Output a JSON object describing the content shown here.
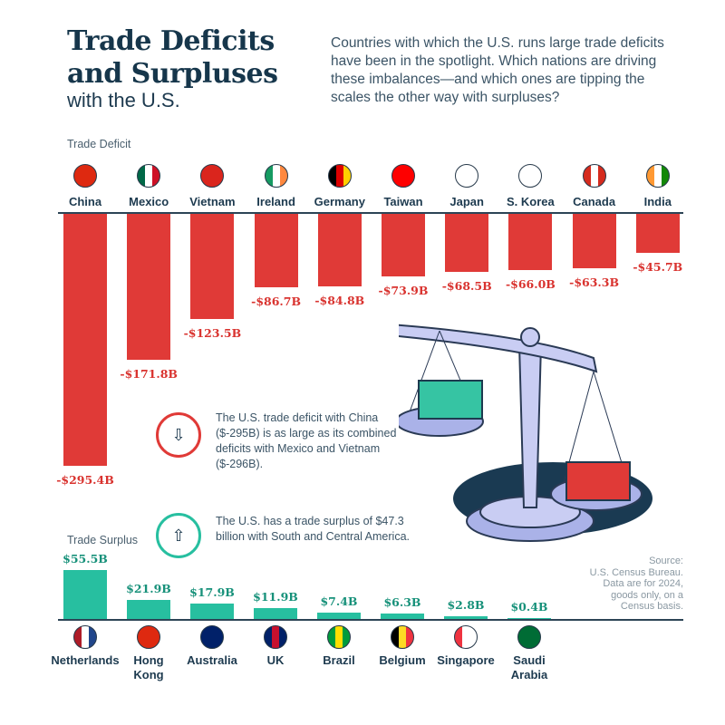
{
  "header": {
    "title_line1": "Trade Deficits",
    "title_line2": "and Surpluses",
    "subtitle": "with the U.S.",
    "intro": "Countries with which the U.S. runs large trade deficits have been in the spotlight. Which nations are driving these imbalances—and which ones are tipping the scales the other way with surpluses?"
  },
  "notes": {
    "china": "The U.S. trade deficit with China ($-295B) is as large as its combined deficits with Mexico and Vietnam ($-296B).",
    "americas": "The U.S. has a trade surplus of $47.3 billion with South and Central America."
  },
  "source": {
    "line1": "Source:",
    "line2": "U.S. Census Bureau.",
    "line3": "Data are for 2024,",
    "line4": "goods only, on a",
    "line5": "Census basis."
  },
  "colors": {
    "deficit": "#e03a37",
    "surplus": "#27bfa0",
    "deficit_text": "#d9332f",
    "surplus_text": "#17917a"
  },
  "chart_data": [
    {
      "type": "bar",
      "title": "Trade Deficit",
      "unit": "USD billions",
      "categories": [
        "China",
        "Mexico",
        "Vietnam",
        "Ireland",
        "Germany",
        "Taiwan",
        "Japan",
        "S. Korea",
        "Canada",
        "India"
      ],
      "values": [
        -295.4,
        -171.8,
        -123.5,
        -86.7,
        -84.8,
        -73.9,
        -68.5,
        -66.0,
        -63.3,
        -45.7
      ],
      "labels": [
        "-$295.4B",
        "-$171.8B",
        "-$123.5B",
        "-$86.7B",
        "-$84.8B",
        "-$73.9B",
        "-$68.5B",
        "-$66.0B",
        "-$63.3B",
        "-$45.7B"
      ],
      "flags": [
        [
          "#de2910",
          "#de2910",
          "#de2910"
        ],
        [
          "#006847",
          "#ffffff",
          "#ce1126"
        ],
        [
          "#da251d",
          "#da251d",
          "#da251d"
        ],
        [
          "#169b62",
          "#ffffff",
          "#ff883e"
        ],
        [
          "#000000",
          "#dd0000",
          "#ffce00"
        ],
        [
          "#fe0000",
          "#fe0000",
          "#fe0000"
        ],
        [
          "#ffffff",
          "#ffffff",
          "#ffffff"
        ],
        [
          "#ffffff",
          "#ffffff",
          "#ffffff"
        ],
        [
          "#d52b1e",
          "#ffffff",
          "#d52b1e"
        ],
        [
          "#ff9933",
          "#ffffff",
          "#138808"
        ]
      ]
    },
    {
      "type": "bar",
      "title": "Trade Surplus",
      "unit": "USD billions",
      "categories": [
        "Netherlands",
        "Hong Kong",
        "Australia",
        "UK",
        "Brazil",
        "Belgium",
        "Singapore",
        "Saudi Arabia"
      ],
      "name_lines": [
        [
          "Netherlands",
          ""
        ],
        [
          "Hong",
          "Kong"
        ],
        [
          "Australia",
          ""
        ],
        [
          "UK",
          ""
        ],
        [
          "Brazil",
          ""
        ],
        [
          "Belgium",
          ""
        ],
        [
          "Singapore",
          ""
        ],
        [
          "Saudi",
          "Arabia"
        ]
      ],
      "values": [
        55.5,
        21.9,
        17.9,
        11.9,
        7.4,
        6.3,
        2.8,
        0.4
      ],
      "labels": [
        "$55.5B",
        "$21.9B",
        "$17.9B",
        "$11.9B",
        "$7.4B",
        "$6.3B",
        "$2.8B",
        "$0.4B"
      ],
      "flags": [
        [
          "#ae1c28",
          "#ffffff",
          "#21468b"
        ],
        [
          "#de2910",
          "#de2910",
          "#de2910"
        ],
        [
          "#012169",
          "#012169",
          "#012169"
        ],
        [
          "#012169",
          "#c8102e",
          "#012169"
        ],
        [
          "#009c3b",
          "#ffdf00",
          "#009c3b"
        ],
        [
          "#000000",
          "#fdda24",
          "#ef3340"
        ],
        [
          "#ef3340",
          "#ffffff",
          "#ffffff"
        ],
        [
          "#006c35",
          "#006c35",
          "#006c35"
        ]
      ]
    }
  ]
}
